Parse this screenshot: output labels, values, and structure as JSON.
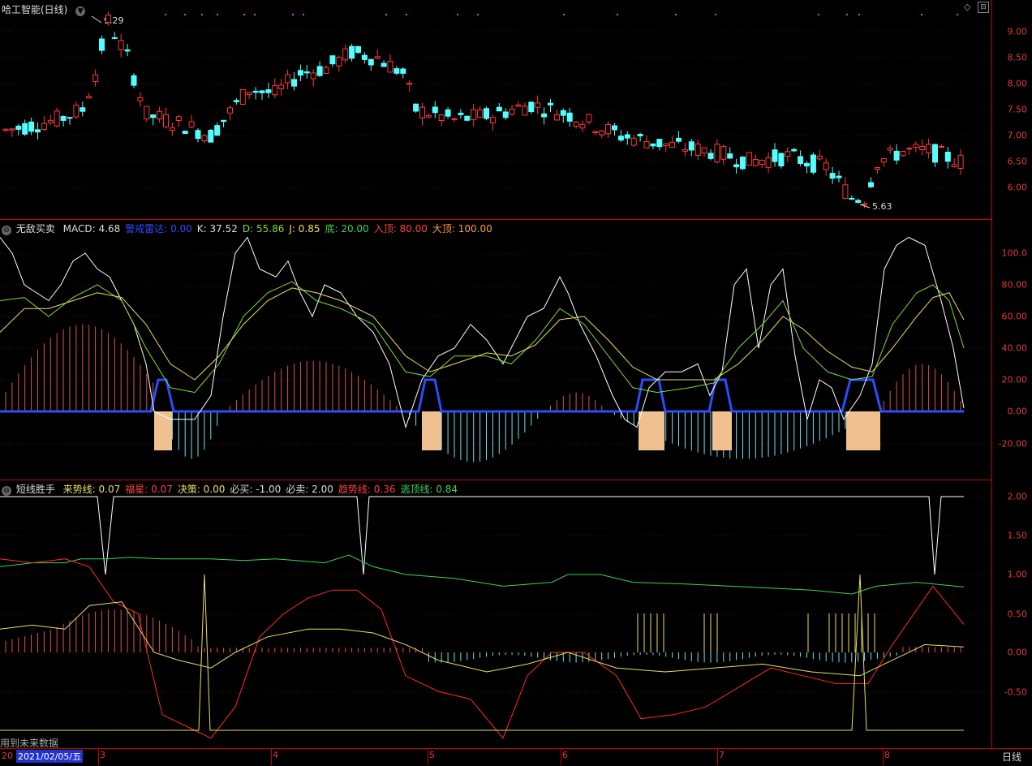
{
  "main": {
    "title": "哈工智能(日线)",
    "high_label": "9.29",
    "low_label": "5.63",
    "ticks": [
      "9.00",
      "8.50",
      "8.00",
      "7.50",
      "7.00",
      "6.50",
      "6.00"
    ]
  },
  "ind1": {
    "name": "无敌买卖",
    "items": [
      {
        "label": "MACD: 4.68",
        "color": "#dddddd"
      },
      {
        "label": "警戒雷达: 0.00",
        "color": "#2a4dff"
      },
      {
        "label": "K: 37.52",
        "color": "#dddddd"
      },
      {
        "label": "D: 55.86",
        "color": "#7fdc3b"
      },
      {
        "label": "J: 0.85",
        "color": "#e8e060"
      },
      {
        "label": "底: 20.00",
        "color": "#3bd45a"
      },
      {
        "label": "入顶: 80.00",
        "color": "#ff4040"
      },
      {
        "label": "大顶: 100.00",
        "color": "#ff9d3b"
      }
    ],
    "ticks": [
      "100.0",
      "80.00",
      "60.00",
      "40.00",
      "20.00",
      "0.00",
      "-20.00"
    ]
  },
  "ind2": {
    "name": "短线胜手",
    "items": [
      {
        "label": "来势线: 0.07",
        "color": "#e8e060"
      },
      {
        "label": "福星: 0.07",
        "color": "#ff4040"
      },
      {
        "label": "决策: 0.00",
        "color": "#e8e060"
      },
      {
        "label": "必买: -1.00",
        "color": "#dddddd"
      },
      {
        "label": "必卖: 2.00",
        "color": "#dddddd"
      },
      {
        "label": "趋势线: 0.36",
        "color": "#ff4040"
      },
      {
        "label": "逃顶线: 0.84",
        "color": "#3bd45a"
      }
    ],
    "ticks": [
      "2.00",
      "1.50",
      "1.00",
      "0.50",
      "0.00",
      "-0.50"
    ]
  },
  "footer": {
    "future_data": "用到未来数据",
    "cursor_date": "2021/02/05/五",
    "cursor_prefix": "20",
    "month_ticks": [
      "3",
      "4",
      "5",
      "6",
      "7",
      "8"
    ],
    "period_tab": "日线"
  }
}
